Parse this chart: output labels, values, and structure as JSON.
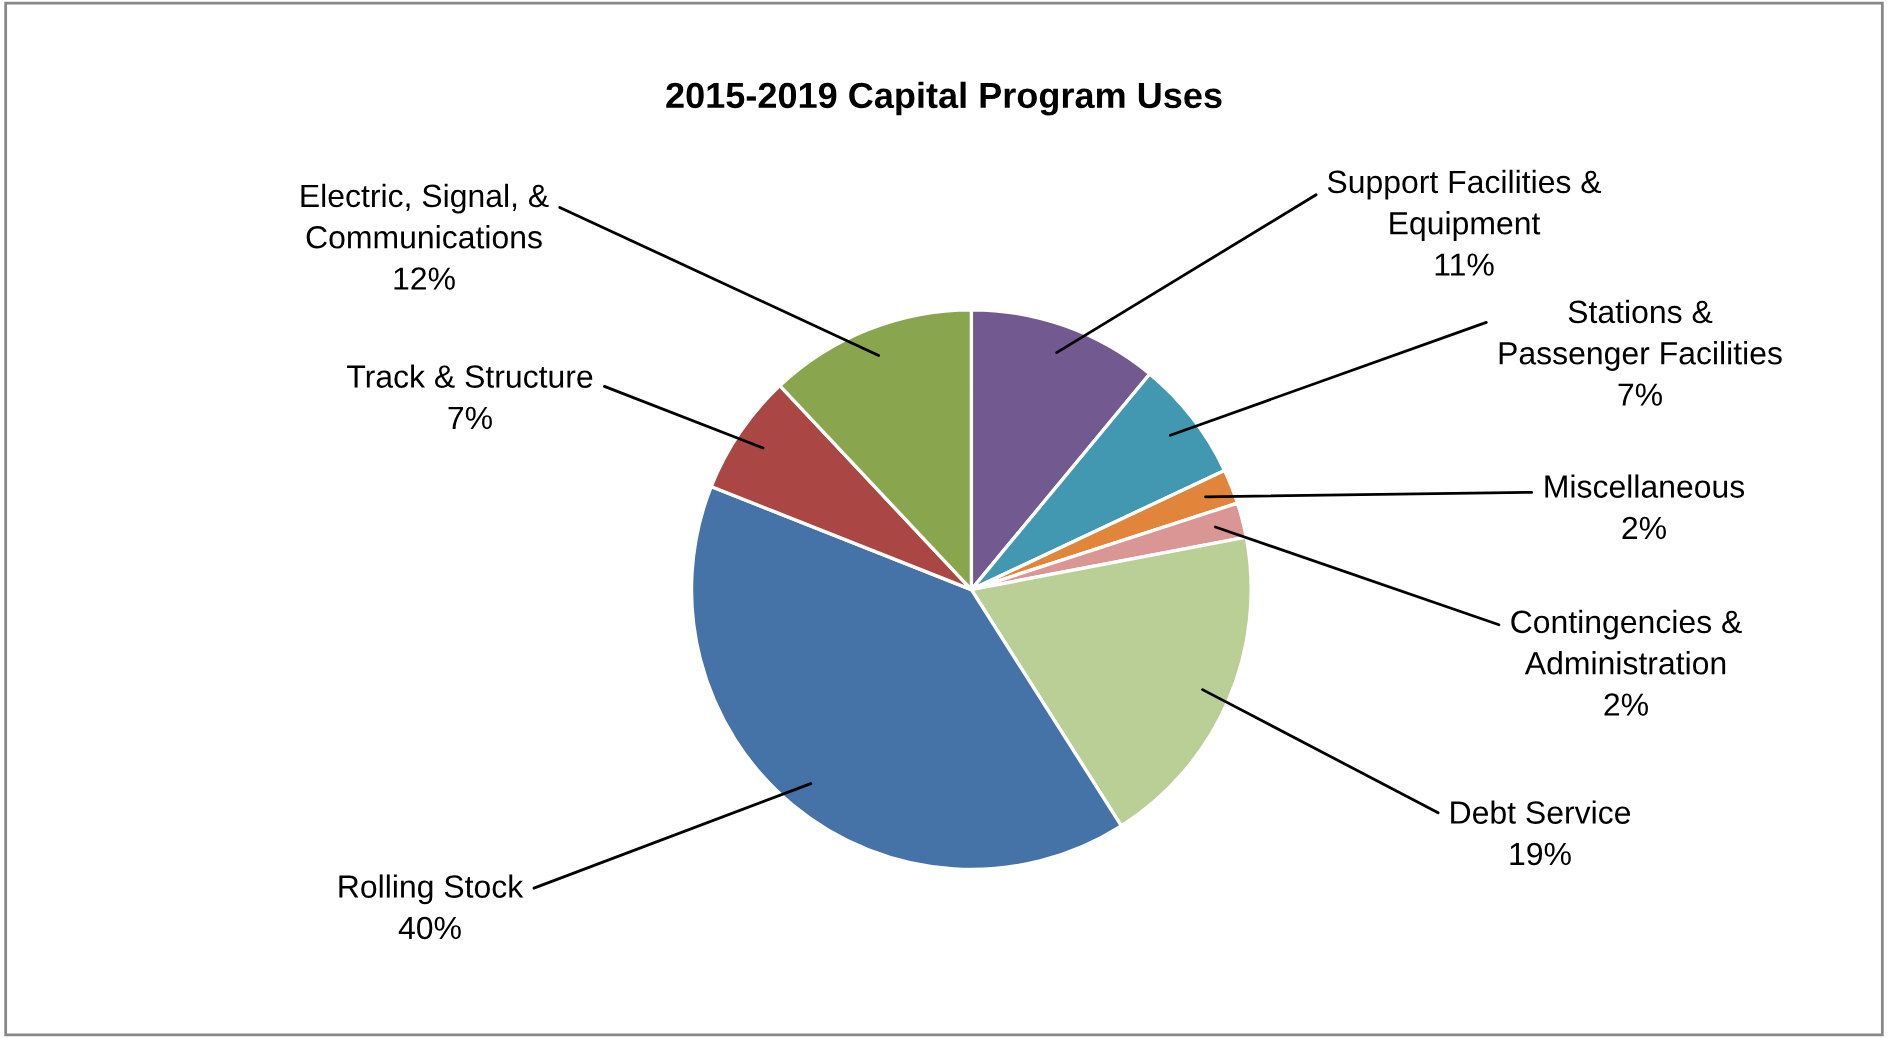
{
  "chart_data": {
    "type": "pie",
    "title": "2015-2019 Capital Program Uses",
    "categories": [
      "Support Facilities & Equipment",
      "Stations & Passenger Facilities",
      "Miscellaneous",
      "Contingencies & Administration",
      "Debt Service",
      "Rolling Stock",
      "Track & Structure",
      "Electric, Signal, & Communications"
    ],
    "values": [
      11,
      7,
      2,
      2,
      19,
      40,
      7,
      12
    ],
    "colors": [
      "#725990",
      "#4198b0",
      "#e0853a",
      "#d99694",
      "#b9cf96",
      "#4572a7",
      "#aa4643",
      "#89a54e"
    ],
    "value_labels": [
      "11%",
      "7%",
      "2%",
      "2%",
      "19%",
      "40%",
      "7%",
      "12%"
    ],
    "legend": false
  }
}
